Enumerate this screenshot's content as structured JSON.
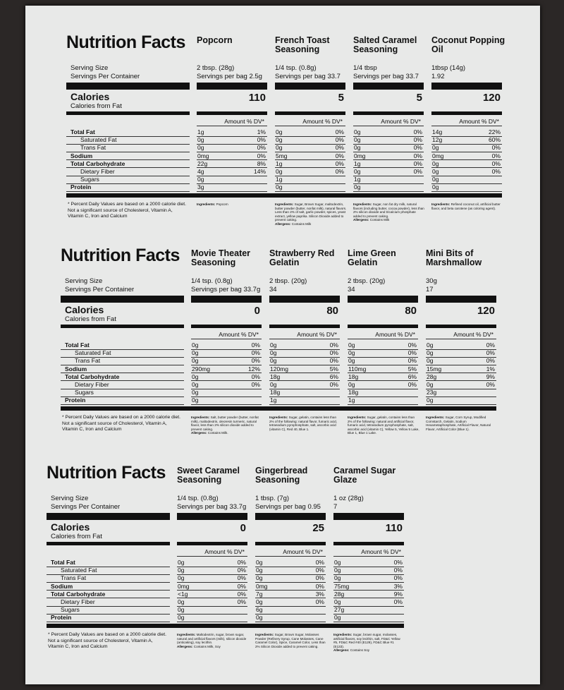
{
  "labels": {
    "title": "Nutrition Facts",
    "serving_size": "Serving Size",
    "servings_per_container": "Servings Per Container",
    "calories": "Calories",
    "calories_from_fat": "Calories from Fat",
    "amount_dv": "Amount % DV*",
    "rows": [
      "Total Fat",
      "Saturated Fat",
      "Trans Fat",
      "Sodium",
      "Total Carbohydrate",
      "Dietary Fiber",
      "Sugars",
      "Protein"
    ],
    "footnote": "* Percent Daily Values are based on a 2000 calorie diet. Not a significant source of Cholesterol, Vitamin A, Vitamin C, Iron and Calcium",
    "ingredients": "Ingredients:",
    "allergens": "Allergens:"
  },
  "panels": [
    {
      "products": [
        {
          "name": "Popcorn",
          "serving": "2 tbsp. (28g)",
          "servings": "Servings per bag 2.5g",
          "calories": "110",
          "rows": [
            [
              "1g",
              "1%"
            ],
            [
              "0g",
              "0%"
            ],
            [
              "0g",
              "0%"
            ],
            [
              "0mg",
              "0%"
            ],
            [
              "22g",
              "8%"
            ],
            [
              "4g",
              "14%"
            ],
            [
              "0g"
            ],
            [
              "3g"
            ]
          ],
          "ingredients": "Popcorn"
        },
        {
          "name": "French Toast Seasoning",
          "serving": "1/4 tsp. (0.8g)",
          "servings": "Servings per bag 33.7",
          "calories": "5",
          "rows": [
            [
              "0g",
              "0%"
            ],
            [
              "0g",
              "0%"
            ],
            [
              "0g",
              "0%"
            ],
            [
              "5mg",
              "0%"
            ],
            [
              "1g",
              "0%"
            ],
            [
              "0g",
              "0%"
            ],
            [
              "1g"
            ],
            [
              "0g"
            ]
          ],
          "ingredients": "Sugar, Brown Sugar, maltodextrin, butter powder (butter, nonfat milk), natural flavors. Less than 2% of salt, garlic powder, spices, yeast extract, yellow paprika. Silicon Dioxide added to prevent caking.",
          "allergens": "Contains Milk"
        },
        {
          "name": "Salted Caramel Seasoning",
          "serving": "1/4 tbsp",
          "servings": "Servings per bag 33.7",
          "calories": "5",
          "rows": [
            [
              "0g",
              "0%"
            ],
            [
              "0g",
              "0%"
            ],
            [
              "0g",
              "0%"
            ],
            [
              "0mg",
              "0%"
            ],
            [
              "1g",
              "0%"
            ],
            [
              "0g",
              "0%"
            ],
            [
              "1g"
            ],
            [
              "0g"
            ]
          ],
          "ingredients": "Sugar, non fat dry milk, natural flavors (including butter, cocoa powder), less than 2% silicon dioxide and tricalcium phosphate added to prevent caking.",
          "allergens": "Contains Milk"
        },
        {
          "name": "Coconut Popping Oil",
          "serving": "1tbsp (14g)",
          "servings": "1.92",
          "calories": "120",
          "rows": [
            [
              "14g",
              "22%"
            ],
            [
              "12g",
              "60%"
            ],
            [
              "0g",
              "0%"
            ],
            [
              "0mg",
              "0%"
            ],
            [
              "0g",
              "0%"
            ],
            [
              "0g",
              "0%"
            ],
            [
              "0g"
            ],
            [
              "0g"
            ]
          ],
          "ingredients": "Refined coconut oil, artificial butter flavor, and beta carotene (as coloring agent)."
        }
      ]
    },
    {
      "products": [
        {
          "name": "Movie Theater Seasoning",
          "serving": "1/4 tsp. (0.8g)",
          "servings": "Servings per bag 33.7g",
          "calories": "0",
          "rows": [
            [
              "0g",
              "0%"
            ],
            [
              "0g",
              "0%"
            ],
            [
              "0g",
              "0%"
            ],
            [
              "290mg",
              "12%"
            ],
            [
              "0g",
              "0%"
            ],
            [
              "0g",
              "0%"
            ],
            [
              "0g"
            ],
            [
              "0g"
            ]
          ],
          "ingredients": "Salt, butter powder (butter, nonfat milk), maltodextrin, oleoresin turmeric, natural flavor, less than 2% silicon dioxide added to prevent caking.",
          "allergens": "Contains Milk."
        },
        {
          "name": "Strawberry Red Gelatin",
          "serving": "2 tbsp. (20g)",
          "servings": "34",
          "calories": "80",
          "rows": [
            [
              "0g",
              "0%"
            ],
            [
              "0g",
              "0%"
            ],
            [
              "0g",
              "0%"
            ],
            [
              "120mg",
              "5%"
            ],
            [
              "18g",
              "6%"
            ],
            [
              "0g",
              "0%"
            ],
            [
              "18g"
            ],
            [
              "1g"
            ]
          ],
          "ingredients": "Sugar, gelatin, contains less than 2% of the following: natural flavor, fumaric acid, tetrasodium pyrophosphate, salt, ascorbic acid (vitamin C), Red 40, Blue 1."
        },
        {
          "name": "Lime Green Gelatin",
          "serving": "2 tbsp. (20g)",
          "servings": "34",
          "calories": "80",
          "rows": [
            [
              "0g",
              "0%"
            ],
            [
              "0g",
              "0%"
            ],
            [
              "0g",
              "0%"
            ],
            [
              "110mg",
              "5%"
            ],
            [
              "18g",
              "6%"
            ],
            [
              "0g",
              "0%"
            ],
            [
              "18g"
            ],
            [
              "1g"
            ]
          ],
          "ingredients": "Sugar, gelatin, contains less than 2% of the following: natural and artificial flavor, fumaric acid, tetrasodium pyrophosphate, salt, ascorbic acid (vitamin C), Yellow 5, Yellow 5 Lake, Blue 1, Blue 1 Lake."
        },
        {
          "name": "Mini Bits of Marshmallow",
          "serving": "30g",
          "servings": "17",
          "calories": "120",
          "rows": [
            [
              "0g",
              "0%"
            ],
            [
              "0g",
              "0%"
            ],
            [
              "0g",
              "0%"
            ],
            [
              "15mg",
              "1%"
            ],
            [
              "28g",
              "9%"
            ],
            [
              "0g",
              "0%"
            ],
            [
              "23g"
            ],
            [
              "0g"
            ]
          ],
          "ingredients": "Sugar, Corn Syrup, Modified Cornstarch, Gelatin, Sodium Hexametaphosphate, Artificial Flavor, Natural Flavor, Artificial Color (Blue 1)."
        }
      ]
    },
    {
      "products": [
        {
          "name": "Sweet Caramel Seasoning",
          "serving": "1/4 tsp. (0.8g)",
          "servings": "Servings per bag 33.7g",
          "calories": "0",
          "rows": [
            [
              "0g",
              "0%"
            ],
            [
              "0g",
              "0%"
            ],
            [
              "0g",
              "0%"
            ],
            [
              "0mg",
              "0%"
            ],
            [
              "<1g",
              "0%"
            ],
            [
              "0g",
              "0%"
            ],
            [
              "0g"
            ],
            [
              "0g"
            ]
          ],
          "ingredients": "Maltodextrin, sugar, brown sugar, natural and artificial flavors (milk), silicon dioxide (anticaking), soy lecithin.",
          "allergens": "Contains Milk, Soy"
        },
        {
          "name": "Gingerbread Seasoning",
          "serving": "1 tbsp. (7g)",
          "servings": "Servings per bag 0.95",
          "calories": "25",
          "rows": [
            [
              "0g",
              "0%"
            ],
            [
              "0g",
              "0%"
            ],
            [
              "0g",
              "0%"
            ],
            [
              "0mg",
              "0%"
            ],
            [
              "7g",
              "3%"
            ],
            [
              "0g",
              "0%"
            ],
            [
              "6g"
            ],
            [
              "0g"
            ]
          ],
          "ingredients": "Sugar, Brown Sugar, Molasses Powder (Refinery Syrup, Cane Molasses, Cane Caramel Color), Spice, Caramel Color, Less than 2% Silicon Dioxide added to prevent caking."
        },
        {
          "name": "Caramel Sugar Glaze",
          "serving": "1 oz (28g)",
          "servings": "7",
          "calories": "110",
          "rows": [
            [
              "0g",
              "0%"
            ],
            [
              "0g",
              "0%"
            ],
            [
              "0g",
              "0%"
            ],
            [
              "75mg",
              "3%"
            ],
            [
              "28g",
              "9%"
            ],
            [
              "0g",
              "0%"
            ],
            [
              "27g"
            ],
            [
              "0g"
            ]
          ],
          "ingredients": "Sugar, brown sugar, molasses, artificial flavors, soy lecithin, salt, FD&C Yellow #5, FD&C Red #40 (E129), FD&C Blue #1 (E133).",
          "allergens": "Contains Soy"
        }
      ]
    }
  ]
}
